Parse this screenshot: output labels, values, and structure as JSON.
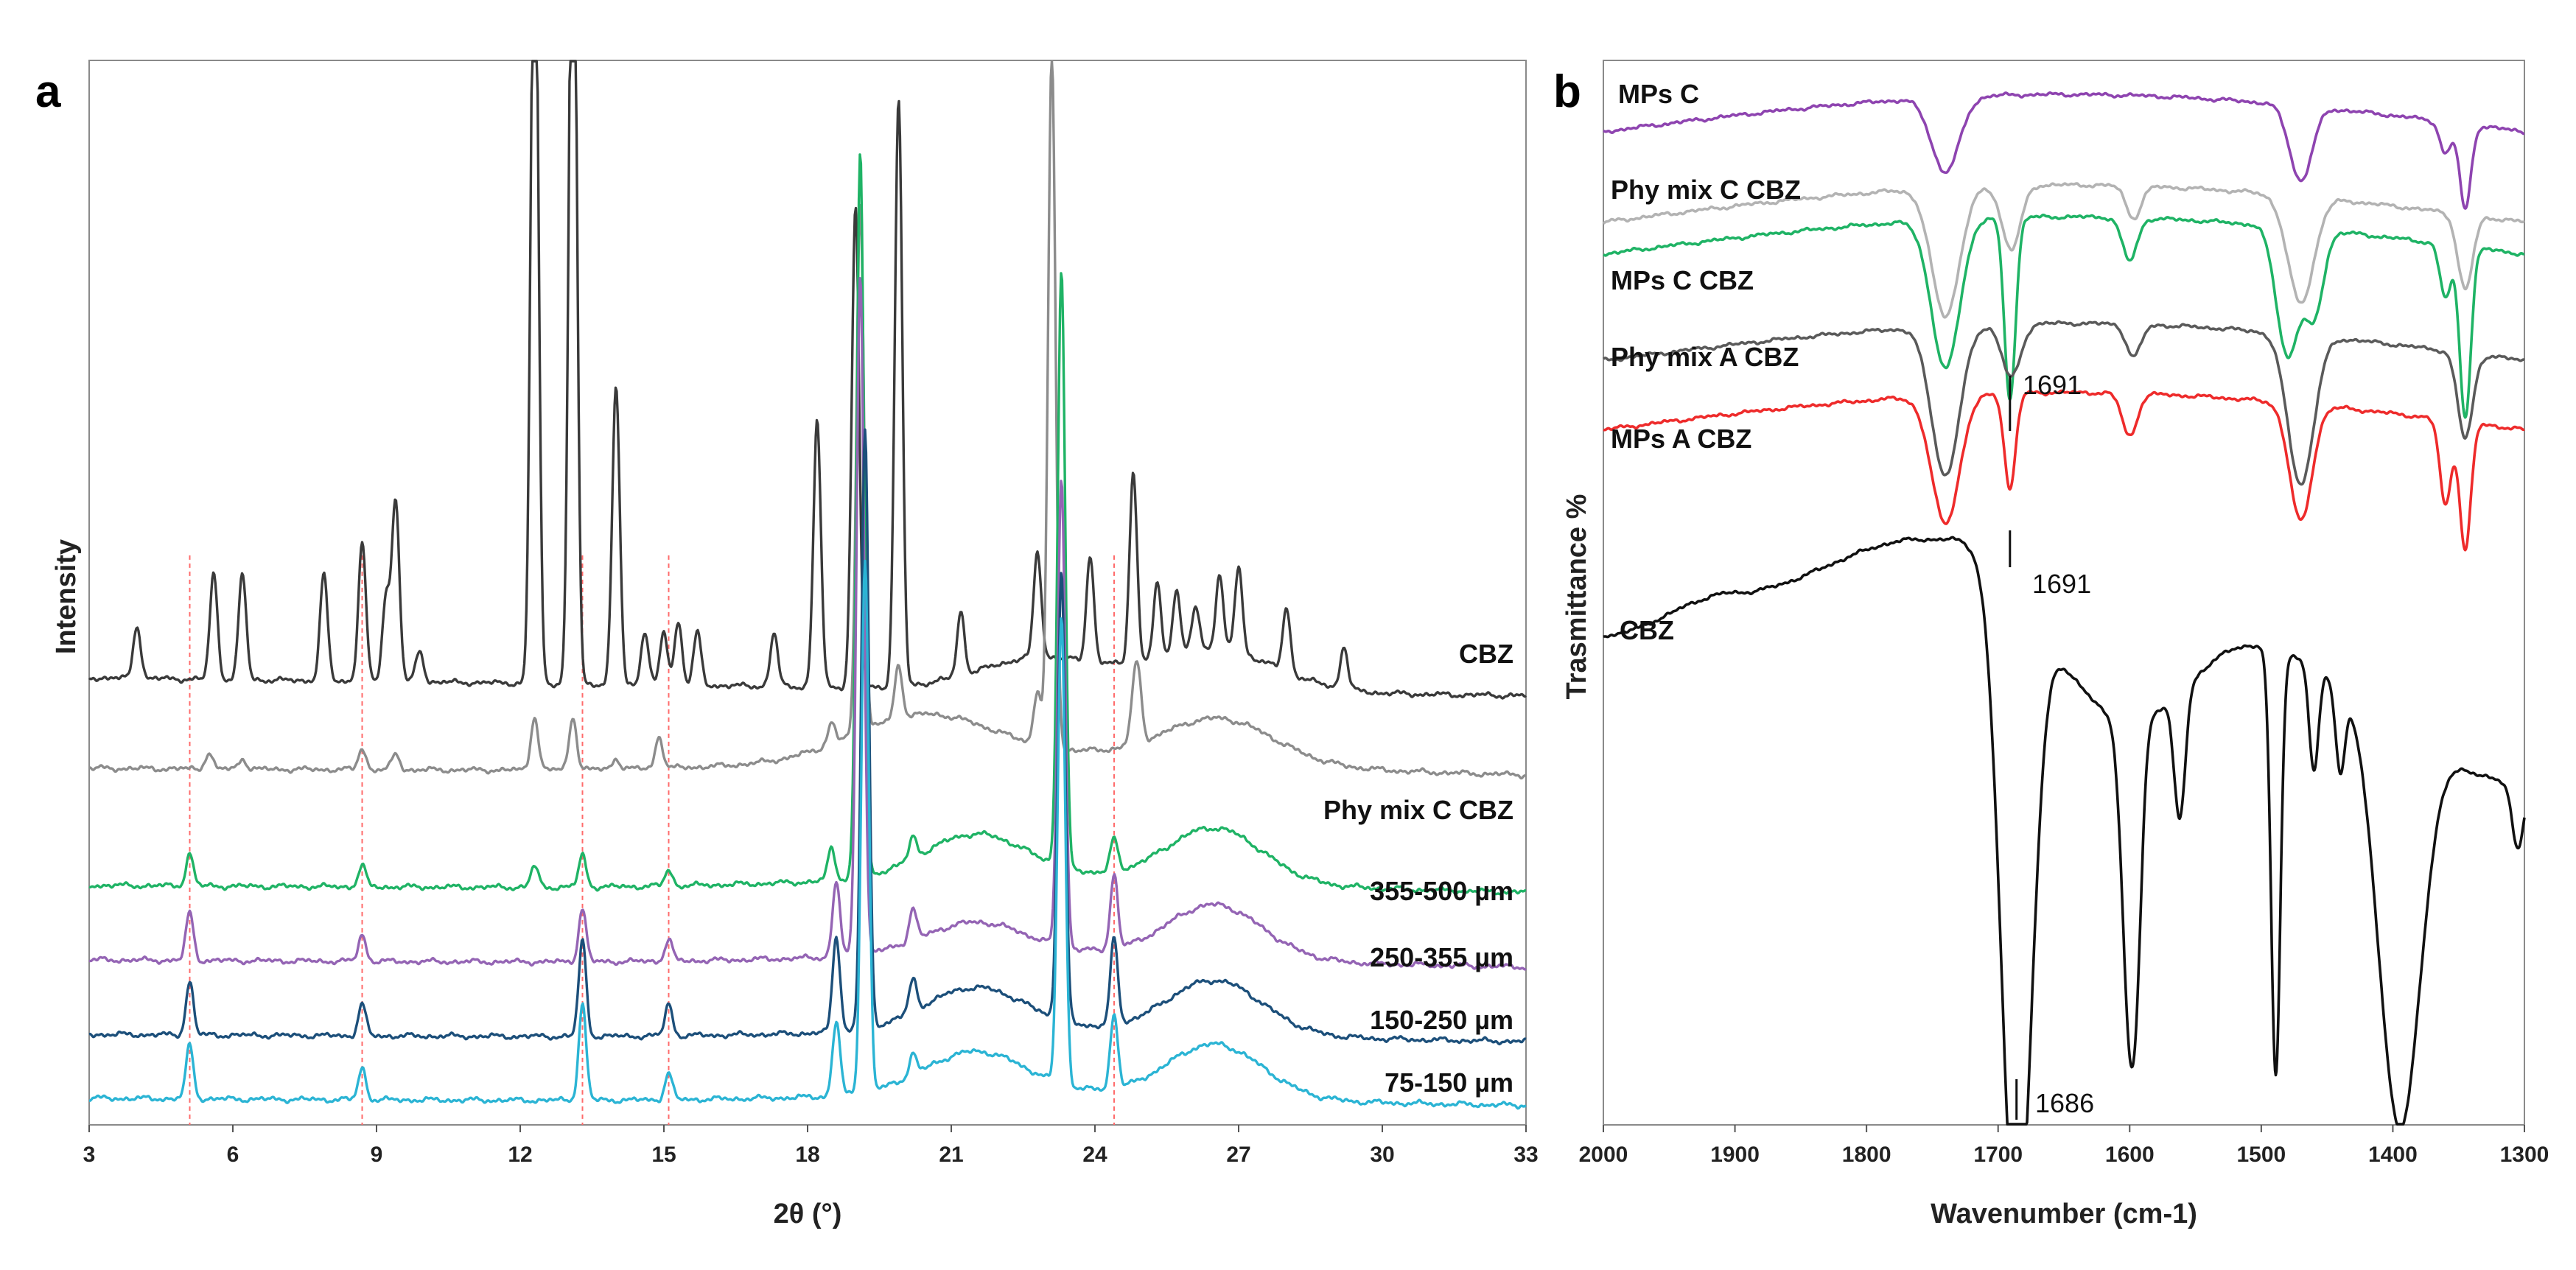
{
  "chart_data": [
    {
      "type": "line",
      "panel": "a",
      "xlabel": "2θ (°)",
      "ylabel": "Intensity",
      "xlim": [
        3,
        33
      ],
      "xticks": [
        3,
        6,
        9,
        12,
        15,
        18,
        21,
        24,
        27,
        30,
        33
      ],
      "y_ticks_shown": false,
      "reference_lines": [
        5.1,
        8.7,
        13.3,
        15.1,
        24.4
      ],
      "reference_line_color": "#ff6b6b",
      "series": [
        {
          "name": "CBZ",
          "color": "#3a3a3a",
          "baseline": 0.42,
          "lift": 0,
          "peaks": [
            [
              4.0,
              0.05
            ],
            [
              5.6,
              0.1
            ],
            [
              6.2,
              0.1
            ],
            [
              7.9,
              0.1
            ],
            [
              8.7,
              0.13
            ],
            [
              9.2,
              0.08
            ],
            [
              9.4,
              0.17
            ],
            [
              9.9,
              0.03
            ],
            [
              12.3,
              0.78
            ],
            [
              13.1,
              0.86
            ],
            [
              14.0,
              0.28
            ],
            [
              14.6,
              0.05
            ],
            [
              15.0,
              0.05
            ],
            [
              15.3,
              0.06
            ],
            [
              15.7,
              0.05
            ],
            [
              17.3,
              0.05
            ],
            [
              18.2,
              0.25
            ],
            [
              19.0,
              0.45
            ],
            [
              19.9,
              0.55
            ],
            [
              21.2,
              0.06
            ],
            [
              22.8,
              0.1
            ],
            [
              23.9,
              0.1
            ],
            [
              24.8,
              0.18
            ],
            [
              25.3,
              0.07
            ],
            [
              25.7,
              0.06
            ],
            [
              26.1,
              0.04
            ],
            [
              26.6,
              0.07
            ],
            [
              27.0,
              0.08
            ],
            [
              28.0,
              0.06
            ],
            [
              29.2,
              0.04
            ]
          ],
          "broad": [
            [
              22.9,
              1.8,
              0.03
            ],
            [
              26.5,
              1.8,
              0.04
            ]
          ]
        },
        {
          "name": "Phy mix C CBZ",
          "color": "#8c8c8c",
          "baseline": 0.335,
          "lift": 0.12,
          "peaks": [
            [
              5.5,
              0.015
            ],
            [
              6.2,
              0.01
            ],
            [
              8.7,
              0.02
            ],
            [
              9.4,
              0.015
            ],
            [
              12.3,
              0.05
            ],
            [
              13.1,
              0.05
            ],
            [
              14.0,
              0.01
            ],
            [
              14.9,
              0.03
            ],
            [
              18.5,
              0.02
            ],
            [
              19.1,
              0.5
            ],
            [
              19.9,
              0.05
            ],
            [
              22.8,
              0.05
            ],
            [
              23.1,
              0.65
            ],
            [
              24.8,
              0.03
            ],
            [
              24.9,
              0.06
            ]
          ],
          "broad": [
            [
              20.4,
              2.0,
              0.04
            ],
            [
              26.6,
              1.6,
              0.04
            ]
          ]
        },
        {
          "name": "355-500 µm",
          "color": "#1fb365",
          "baseline": 0.225,
          "lift": 0.09,
          "peaks": [
            [
              5.1,
              0.03
            ],
            [
              8.7,
              0.02
            ],
            [
              12.3,
              0.02
            ],
            [
              13.3,
              0.03
            ],
            [
              15.1,
              0.015
            ],
            [
              18.5,
              0.03
            ],
            [
              19.1,
              0.68
            ],
            [
              20.2,
              0.02
            ],
            [
              23.3,
              0.56
            ],
            [
              24.4,
              0.03
            ]
          ],
          "broad": [
            [
              21.5,
              1.5,
              0.04
            ],
            [
              26.5,
              1.4,
              0.05
            ]
          ]
        },
        {
          "name": "250-355 µm",
          "color": "#9464b4",
          "baseline": 0.155,
          "lift": 0.07,
          "peaks": [
            [
              5.1,
              0.045
            ],
            [
              8.7,
              0.025
            ],
            [
              13.3,
              0.05
            ],
            [
              15.1,
              0.02
            ],
            [
              18.6,
              0.07
            ],
            [
              19.1,
              0.64
            ],
            [
              20.2,
              0.03
            ],
            [
              23.3,
              0.44
            ],
            [
              24.4,
              0.07
            ]
          ],
          "broad": [
            [
              21.5,
              1.5,
              0.03
            ],
            [
              26.5,
              1.4,
              0.05
            ]
          ]
        },
        {
          "name": "150-250 µm",
          "color": "#1c4f7a",
          "baseline": 0.085,
          "lift": 0.06,
          "peaks": [
            [
              5.1,
              0.05
            ],
            [
              8.7,
              0.03
            ],
            [
              13.3,
              0.09
            ],
            [
              15.1,
              0.03
            ],
            [
              18.6,
              0.09
            ],
            [
              19.2,
              0.56
            ],
            [
              20.2,
              0.03
            ],
            [
              23.3,
              0.42
            ],
            [
              24.4,
              0.08
            ]
          ],
          "broad": [
            [
              21.5,
              1.5,
              0.04
            ],
            [
              26.5,
              1.4,
              0.05
            ]
          ]
        },
        {
          "name": "75-150 µm",
          "color": "#2bb4d4",
          "baseline": 0.025,
          "lift": 0.06,
          "peaks": [
            [
              5.1,
              0.05
            ],
            [
              8.7,
              0.03
            ],
            [
              13.3,
              0.09
            ],
            [
              15.1,
              0.025
            ],
            [
              18.6,
              0.07
            ],
            [
              19.2,
              0.5
            ],
            [
              20.2,
              0.02
            ],
            [
              23.3,
              0.44
            ],
            [
              24.4,
              0.07
            ]
          ],
          "broad": [
            [
              21.5,
              1.5,
              0.04
            ],
            [
              26.5,
              1.4,
              0.05
            ]
          ]
        }
      ]
    },
    {
      "type": "line",
      "panel": "b",
      "xlabel": "Wavenumber (cm-1)",
      "ylabel": "Trasmittance %",
      "xlim": [
        2000,
        1300
      ],
      "x_reversed": true,
      "xticks": [
        2000,
        1900,
        1800,
        1700,
        1600,
        1500,
        1400,
        1300
      ],
      "y_ticks_shown": false,
      "annotations": [
        {
          "text": "1691",
          "x": 1691
        },
        {
          "text": "1691",
          "x": 1691
        },
        {
          "text": "1686",
          "x": 1686
        }
      ],
      "series": [
        {
          "name": "MPs C",
          "color": "#8e44b0",
          "baseline": 0.945,
          "scale": 1.0,
          "bands": [
            [
              1740,
              15,
              0.07
            ],
            [
              1470,
              12,
              0.07
            ],
            [
              1360,
              6,
              0.03
            ],
            [
              1345,
              6,
              0.08
            ]
          ]
        },
        {
          "name": "Phy mix C CBZ",
          "color": "#b3b3b3",
          "baseline": 0.86,
          "scale": 1.0,
          "bands": [
            [
              1740,
              15,
              0.12
            ],
            [
              1690,
              10,
              0.06
            ],
            [
              1597,
              8,
              0.03
            ],
            [
              1470,
              14,
              0.1
            ],
            [
              1345,
              8,
              0.07
            ]
          ]
        },
        {
          "name": "MPs C CBZ",
          "color": "#1fb365",
          "baseline": 0.83,
          "scale": 1.0,
          "bands": [
            [
              1740,
              15,
              0.14
            ],
            [
              1691,
              6,
              0.17
            ],
            [
              1600,
              8,
              0.04
            ],
            [
              1480,
              12,
              0.12
            ],
            [
              1460,
              10,
              0.08
            ],
            [
              1360,
              6,
              0.05
            ],
            [
              1345,
              6,
              0.16
            ]
          ]
        },
        {
          "name": "Phy mix A CBZ",
          "color": "#5a5a5a",
          "baseline": 0.73,
          "scale": 1.0,
          "bands": [
            [
              1740,
              15,
              0.14
            ],
            [
              1690,
              10,
              0.05
            ],
            [
              1597,
              8,
              0.03
            ],
            [
              1470,
              14,
              0.14
            ],
            [
              1345,
              8,
              0.08
            ]
          ]
        },
        {
          "name": "MPs A CBZ",
          "color": "#ee2b2b",
          "baseline": 0.665,
          "scale": 1.0,
          "bands": [
            [
              1740,
              15,
              0.12
            ],
            [
              1691,
              6,
              0.09
            ],
            [
              1600,
              8,
              0.04
            ],
            [
              1470,
              12,
              0.11
            ],
            [
              1360,
              6,
              0.08
            ],
            [
              1345,
              6,
              0.12
            ]
          ]
        },
        {
          "name": "CBZ",
          "color": "#111111",
          "baseline": 0.46,
          "scale": 1.0,
          "bands": [
            [
              1686,
              16,
              0.62
            ],
            [
              1600,
              8,
              0.28
            ],
            [
              1594,
              6,
              0.1
            ],
            [
              1562,
              6,
              0.12
            ],
            [
              1489,
              5,
              0.4
            ],
            [
              1460,
              5,
              0.1
            ],
            [
              1440,
              5,
              0.08
            ],
            [
              1395,
              22,
              0.38
            ],
            [
              1305,
              6,
              0.06
            ]
          ]
        }
      ],
      "cbz_envelope_anchors": [
        [
          2000,
          0.46
        ],
        [
          1900,
          0.5
        ],
        [
          1760,
          0.55
        ],
        [
          1735,
          0.55
        ],
        [
          1600,
          0.38
        ],
        [
          1510,
          0.45
        ],
        [
          1300,
          0.32
        ]
      ]
    }
  ]
}
